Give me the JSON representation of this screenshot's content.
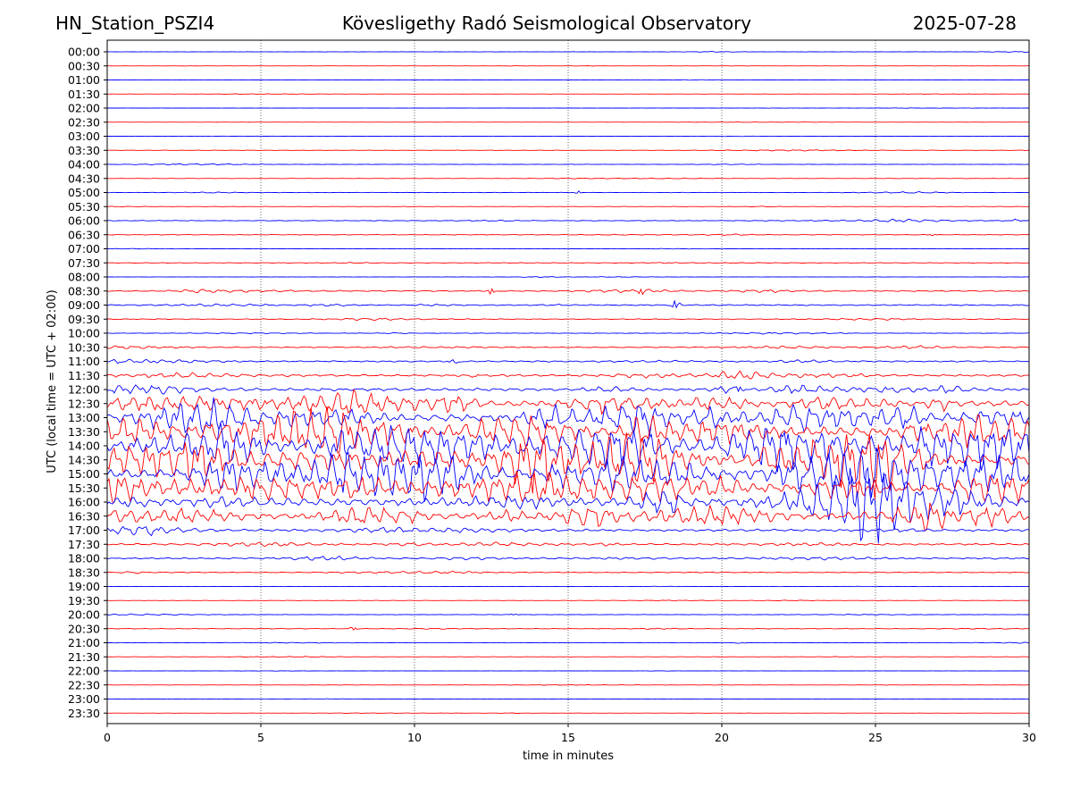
{
  "header": {
    "station": "HN_Station_PSZI4",
    "observatory": "Kövesligethy Radó Seismological Observatory",
    "date": "2025-07-28"
  },
  "colors": {
    "trace_a": "#0000ff",
    "trace_b": "#ff0000"
  },
  "chart_data": {
    "type": "line",
    "xlabel": "time in minutes",
    "ylabel": "UTC (local time = UTC + 02:00)",
    "xlim": [
      0,
      30
    ],
    "xticks": [
      0,
      5,
      10,
      15,
      20,
      25,
      30
    ],
    "grid": "vertical dotted at x ticks",
    "rows": [
      "00:00",
      "00:30",
      "01:00",
      "01:30",
      "02:00",
      "02:30",
      "03:00",
      "03:30",
      "04:00",
      "04:30",
      "05:00",
      "05:30",
      "06:00",
      "06:30",
      "07:00",
      "07:30",
      "08:00",
      "08:30",
      "09:00",
      "09:30",
      "10:00",
      "10:30",
      "11:00",
      "11:30",
      "12:00",
      "12:30",
      "13:00",
      "13:30",
      "14:00",
      "14:30",
      "15:00",
      "15:30",
      "16:00",
      "16:30",
      "17:00",
      "17:30",
      "18:00",
      "18:30",
      "19:00",
      "19:30",
      "20:00",
      "20:30",
      "21:00",
      "21:30",
      "22:00",
      "22:30",
      "23:00",
      "23:30"
    ],
    "row_colors": [
      "blue",
      "red"
    ],
    "activity": [
      0.08,
      0.05,
      0.05,
      0.05,
      0.04,
      0.04,
      0.05,
      0.08,
      0.1,
      0.08,
      0.12,
      0.08,
      0.18,
      0.12,
      0.06,
      0.12,
      0.08,
      0.28,
      0.3,
      0.22,
      0.14,
      0.25,
      0.35,
      0.55,
      0.75,
      1.5,
      1.9,
      2.3,
      2.5,
      2.6,
      2.6,
      2.3,
      1.9,
      1.6,
      0.6,
      0.45,
      0.35,
      0.2,
      0.08,
      0.08,
      0.12,
      0.12,
      0.1,
      0.08,
      0.05,
      0.06,
      0.05,
      0.05
    ],
    "events": [
      {
        "row": "05:00",
        "x": 15.3,
        "amp": 0.5
      },
      {
        "row": "06:00",
        "x": 29.6,
        "amp": 0.5
      },
      {
        "row": "06:30",
        "x": 26.9,
        "amp": 0.4
      },
      {
        "row": "08:30",
        "x": 12.5,
        "amp": 0.9
      },
      {
        "row": "08:30",
        "x": 17.4,
        "amp": 1.0
      },
      {
        "row": "09:00",
        "x": 18.5,
        "amp": 1.6
      },
      {
        "row": "11:00",
        "x": 11.3,
        "amp": 1.2
      },
      {
        "row": "11:30",
        "x": 11.9,
        "amp": 1.2
      },
      {
        "row": "12:00",
        "x": 20.5,
        "amp": 1.4
      },
      {
        "row": "17:00",
        "x": 1.5,
        "amp": 1.1
      },
      {
        "row": "18:00",
        "x": 28.8,
        "amp": 0.5
      },
      {
        "row": "20:00",
        "x": 13.2,
        "amp": 0.5
      },
      {
        "row": "20:30",
        "x": 8.0,
        "amp": 0.4
      },
      {
        "row": "21:00",
        "x": 20.6,
        "amp": 0.4
      }
    ]
  }
}
